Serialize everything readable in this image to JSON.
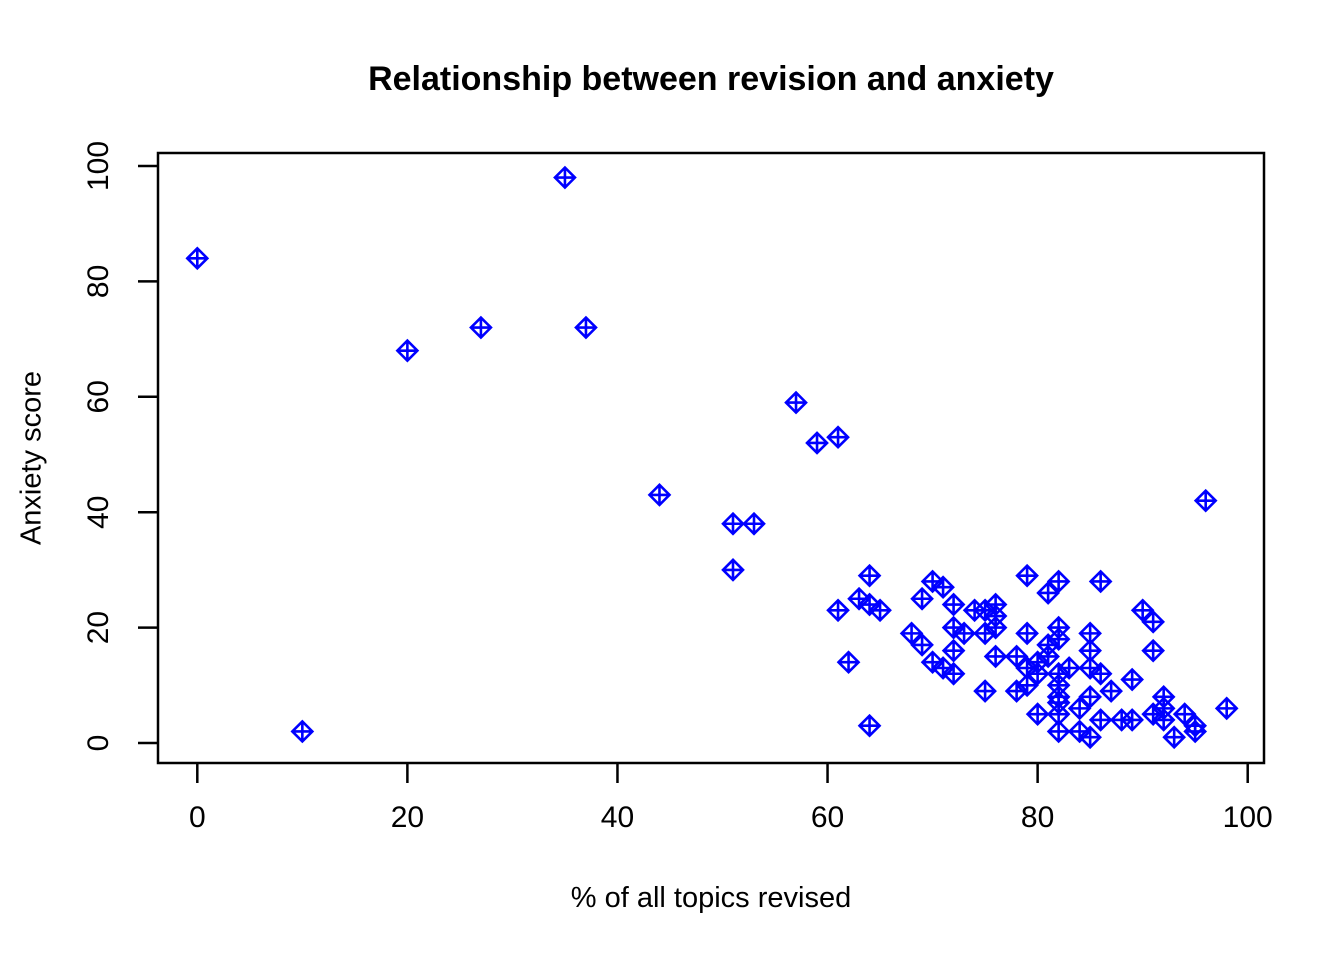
{
  "title": "Relationship between revision and anxiety",
  "chart_data": {
    "type": "scatter",
    "title": "Relationship between revision and anxiety",
    "xlabel": "% of all topics revised",
    "ylabel": "Anxiety score",
    "x_ticks": [
      0,
      20,
      40,
      60,
      80,
      100
    ],
    "y_ticks": [
      0,
      20,
      40,
      60,
      80,
      100
    ],
    "xlim": [
      -3.7,
      101.5
    ],
    "ylim": [
      -3.6,
      102.0
    ],
    "grid": false,
    "legend": "none",
    "marker": "diamond-plus",
    "marker_color": "#0000ff",
    "axis_color": "#000000",
    "points": [
      [
        0,
        84
      ],
      [
        10,
        2
      ],
      [
        20,
        68
      ],
      [
        27,
        72
      ],
      [
        35,
        98
      ],
      [
        37,
        72
      ],
      [
        44,
        43
      ],
      [
        51,
        38
      ],
      [
        53,
        38
      ],
      [
        51,
        30
      ],
      [
        57,
        59
      ],
      [
        59,
        52
      ],
      [
        61,
        53
      ],
      [
        96,
        42
      ],
      [
        98,
        6
      ],
      [
        61,
        23
      ],
      [
        62,
        14
      ],
      [
        64,
        3
      ],
      [
        64,
        29
      ],
      [
        79,
        29
      ],
      [
        86,
        28
      ],
      [
        82,
        28
      ],
      [
        81,
        26
      ],
      [
        70,
        28
      ],
      [
        71,
        27
      ],
      [
        69,
        25
      ],
      [
        63,
        25
      ],
      [
        64,
        24
      ],
      [
        65,
        23
      ],
      [
        72,
        24
      ],
      [
        74,
        23
      ],
      [
        75,
        23
      ],
      [
        76,
        24
      ],
      [
        76,
        22
      ],
      [
        90,
        23
      ],
      [
        91,
        21
      ],
      [
        68,
        19
      ],
      [
        69,
        17
      ],
      [
        72,
        20
      ],
      [
        73,
        19
      ],
      [
        75,
        19
      ],
      [
        76,
        20
      ],
      [
        79,
        19
      ],
      [
        82,
        20
      ],
      [
        82,
        18
      ],
      [
        81,
        17
      ],
      [
        81,
        15
      ],
      [
        85,
        19
      ],
      [
        85,
        16
      ],
      [
        91,
        16
      ],
      [
        72,
        16
      ],
      [
        70,
        14
      ],
      [
        71,
        13
      ],
      [
        72,
        12
      ],
      [
        76,
        15
      ],
      [
        78,
        15
      ],
      [
        79,
        13
      ],
      [
        80,
        14
      ],
      [
        80,
        12
      ],
      [
        83,
        13
      ],
      [
        82,
        12
      ],
      [
        85,
        13
      ],
      [
        86,
        12
      ],
      [
        89,
        11
      ],
      [
        92,
        8
      ],
      [
        75,
        9
      ],
      [
        78,
        9
      ],
      [
        79,
        10
      ],
      [
        82,
        10
      ],
      [
        82,
        8
      ],
      [
        87,
        9
      ],
      [
        85,
        8
      ],
      [
        82,
        7
      ],
      [
        82,
        5
      ],
      [
        84,
        6
      ],
      [
        80,
        5
      ],
      [
        86,
        4
      ],
      [
        88,
        4
      ],
      [
        89,
        4
      ],
      [
        91,
        5
      ],
      [
        92,
        6
      ],
      [
        92,
        4
      ],
      [
        94,
        5
      ],
      [
        95,
        3
      ],
      [
        82,
        2
      ],
      [
        84,
        2
      ],
      [
        85,
        1
      ],
      [
        93,
        1
      ],
      [
        95,
        2
      ]
    ]
  }
}
